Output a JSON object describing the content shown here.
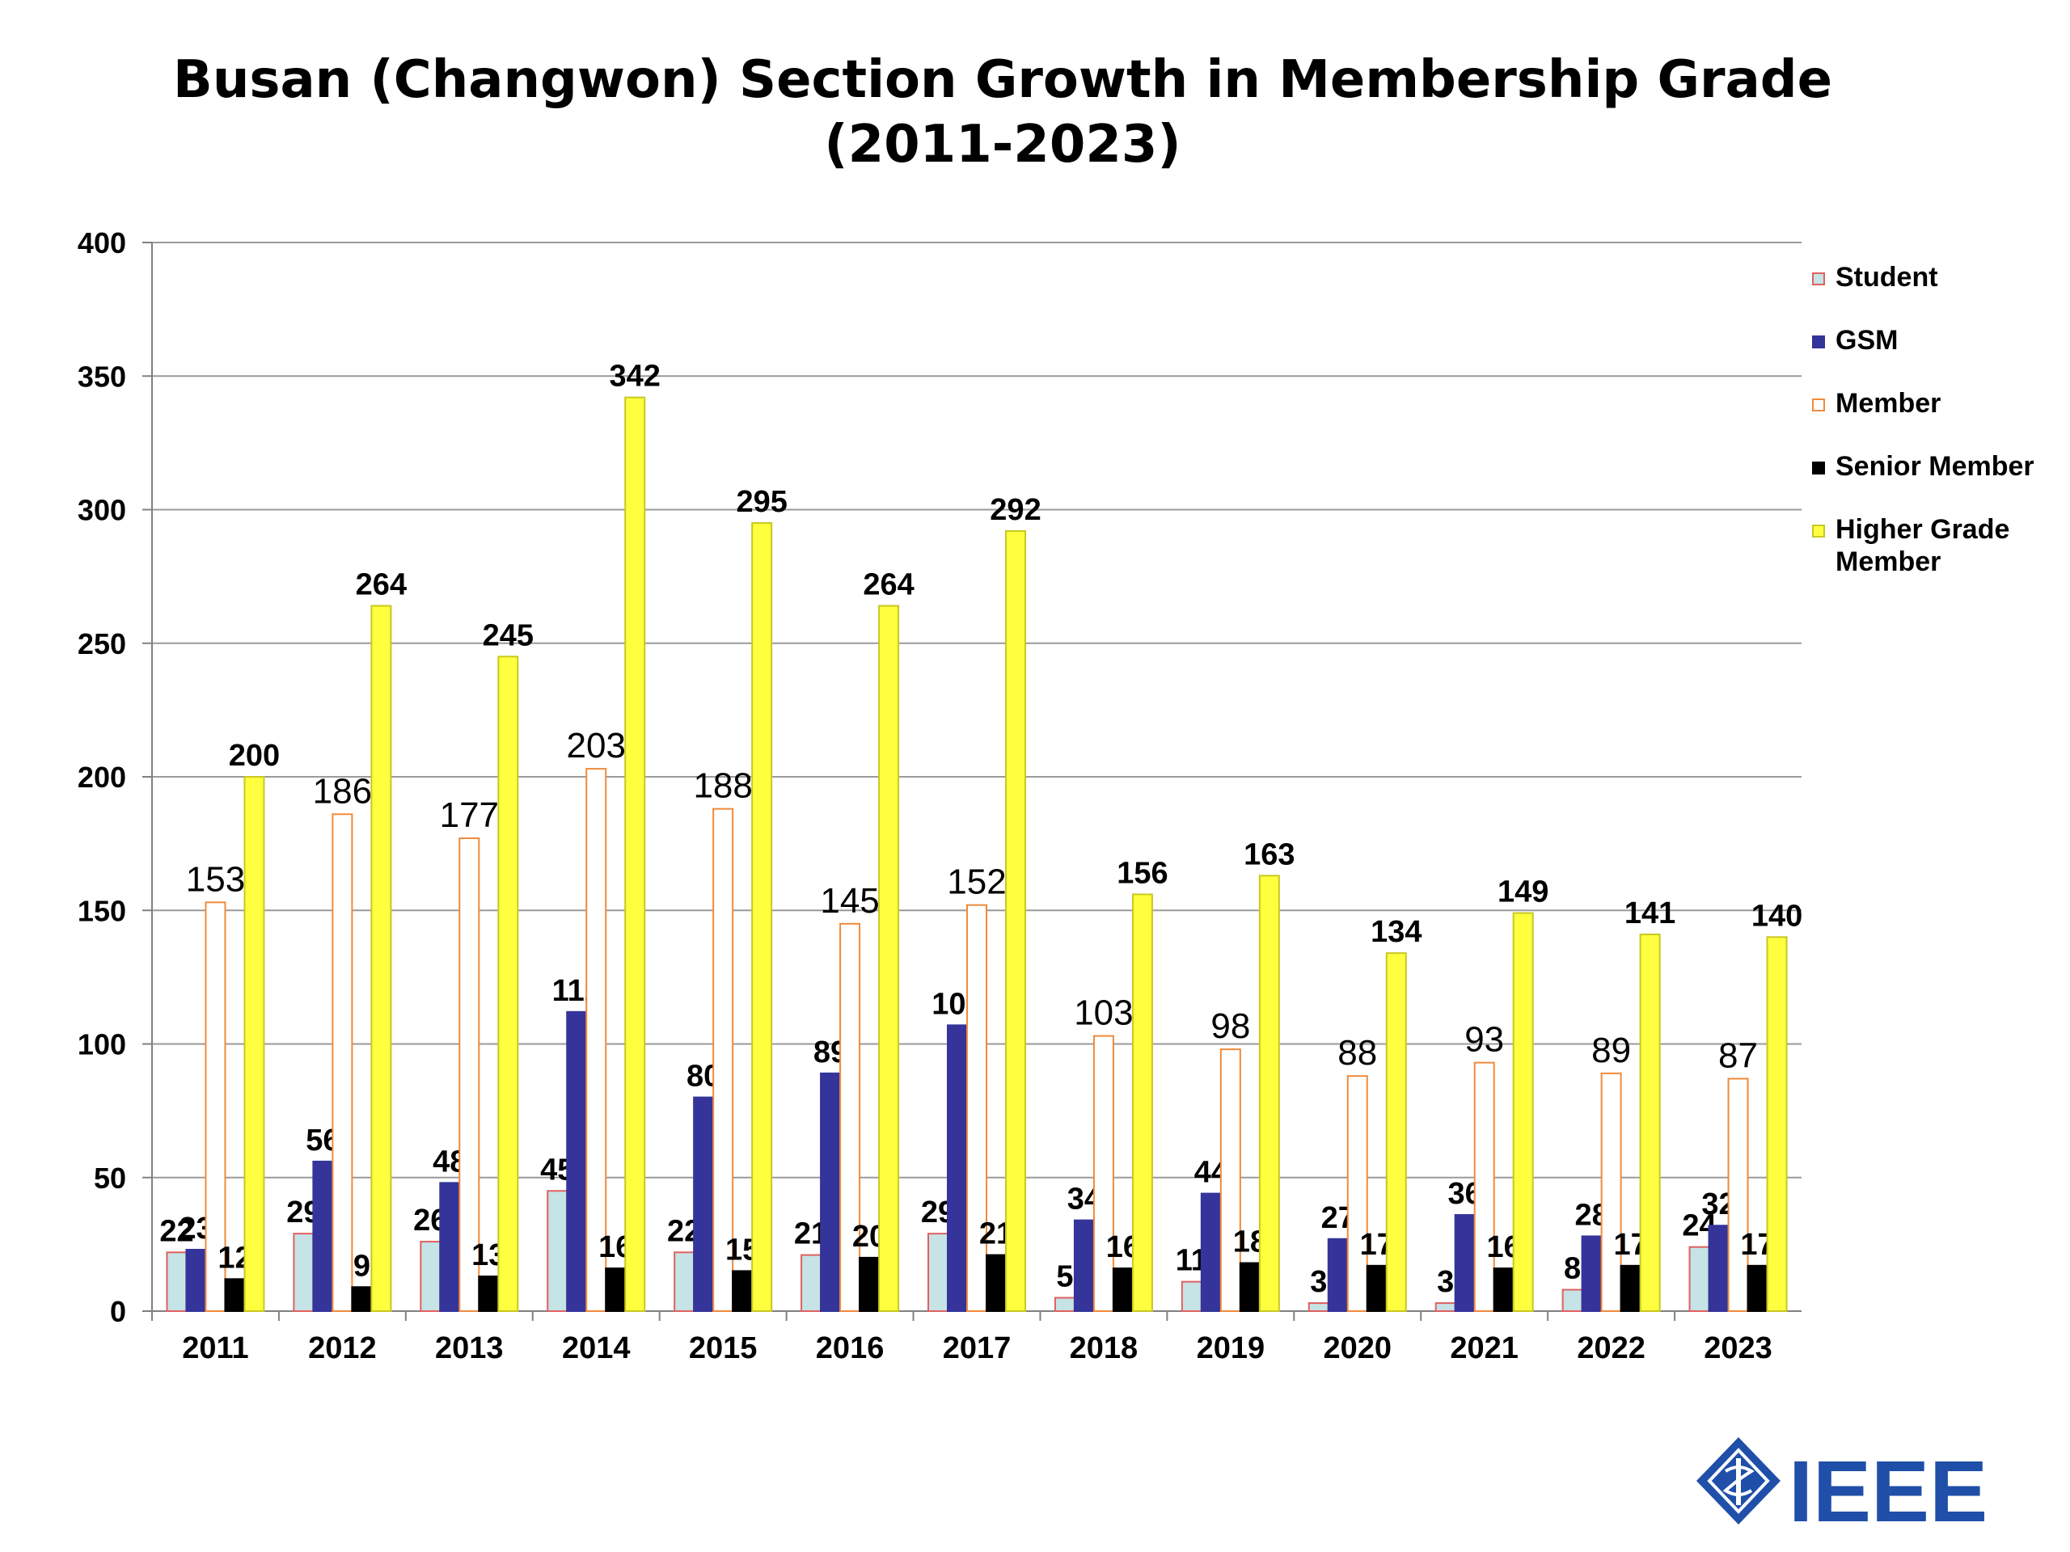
{
  "chart_data": {
    "type": "bar",
    "title_line1": "Busan (Changwon) Section Growth in Membership Grade",
    "title_line2": "(2011-2023)",
    "categories": [
      "2011",
      "2012",
      "2013",
      "2014",
      "2015",
      "2016",
      "2017",
      "2018",
      "2019",
      "2020",
      "2021",
      "2022",
      "2023"
    ],
    "ylim": [
      0,
      400
    ],
    "yticks": [
      0,
      50,
      100,
      150,
      200,
      250,
      300,
      350,
      400
    ],
    "grid": true,
    "legend_position": "right",
    "series": [
      {
        "name": "Student",
        "values": [
          22,
          29,
          26,
          45,
          22,
          21,
          29,
          5,
          11,
          3,
          3,
          8,
          24
        ],
        "fill": "#c6e3e6",
        "stroke": "#e06060",
        "label_style": "bold"
      },
      {
        "name": "GSM",
        "values": [
          23,
          56,
          48,
          112,
          80,
          89,
          107,
          34,
          44,
          27,
          36,
          28,
          32
        ],
        "fill": "#34349a",
        "stroke": "#34349a",
        "label_style": "bold"
      },
      {
        "name": "Member",
        "values": [
          153,
          186,
          177,
          203,
          188,
          145,
          152,
          103,
          98,
          88,
          93,
          89,
          87
        ],
        "fill": "#ffffff",
        "stroke": "#f08a3a",
        "label_style": "normal"
      },
      {
        "name": "Senior Member",
        "values": [
          12,
          9,
          13,
          16,
          15,
          20,
          21,
          16,
          18,
          17,
          16,
          17,
          17
        ],
        "fill": "#000000",
        "stroke": "#000000",
        "label_style": "bold"
      },
      {
        "name": "Higher Grade Member",
        "values": [
          200,
          264,
          245,
          342,
          295,
          264,
          292,
          156,
          163,
          134,
          149,
          141,
          140
        ],
        "fill": "#ffff40",
        "stroke": "#c8c820",
        "label_style": "bold"
      }
    ]
  },
  "logo": {
    "text": "IEEE",
    "color": "#1f4fa8"
  }
}
